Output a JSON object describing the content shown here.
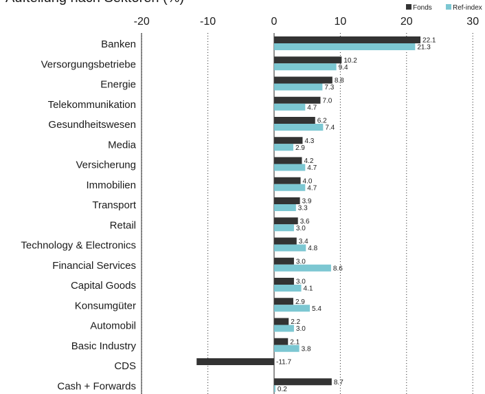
{
  "chart_data": {
    "type": "bar",
    "orientation": "horizontal",
    "title": "Aufteilung nach Sektoren (%)",
    "legend_position": "top-right",
    "xlim": [
      -20,
      30
    ],
    "xticks": [
      -20,
      -10,
      0,
      10,
      20,
      30
    ],
    "grid": "vertical dotted",
    "categories": [
      "Banken",
      "Versorgungsbetriebe",
      "Energie",
      "Telekommunikation",
      "Gesundheitswesen",
      "Media",
      "Versicherung",
      "Immobilien",
      "Transport",
      "Retail",
      "Technology & Electronics",
      "Financial Services",
      "Capital Goods",
      "Konsumgüter",
      "Automobil",
      "Basic Industry",
      "CDS",
      "Cash + Forwards"
    ],
    "series": [
      {
        "name": "Fonds",
        "color": "#333333",
        "values": [
          22.1,
          10.2,
          8.8,
          7.0,
          6.2,
          4.3,
          4.2,
          4.0,
          3.9,
          3.6,
          3.4,
          3.0,
          3.0,
          2.9,
          2.2,
          2.1,
          -11.7,
          8.7
        ],
        "labels": [
          "22.1",
          "10.2",
          "8.8",
          "7.0",
          "6.2",
          "4.3",
          "4.2",
          "4.0",
          "3.9",
          "3.6",
          "3.4",
          "3.0",
          "3.0",
          "2.9",
          "2.2",
          "2.1",
          "-11.7",
          "8.7"
        ]
      },
      {
        "name": "Ref-index",
        "color": "#7cc7d2",
        "values": [
          21.3,
          9.4,
          7.3,
          4.7,
          7.4,
          2.9,
          4.7,
          4.7,
          3.3,
          3.0,
          4.8,
          8.6,
          4.1,
          5.4,
          3.0,
          3.8,
          null,
          0.2
        ],
        "labels": [
          "21.3",
          "9.4",
          "7.3",
          "4.7",
          "7.4",
          "2.9",
          "4.7",
          "4.7",
          "3.3",
          "3.0",
          "4.8",
          "8.6",
          "4.1",
          "5.4",
          "3.0",
          "3.8",
          null,
          "0.2"
        ]
      }
    ]
  }
}
